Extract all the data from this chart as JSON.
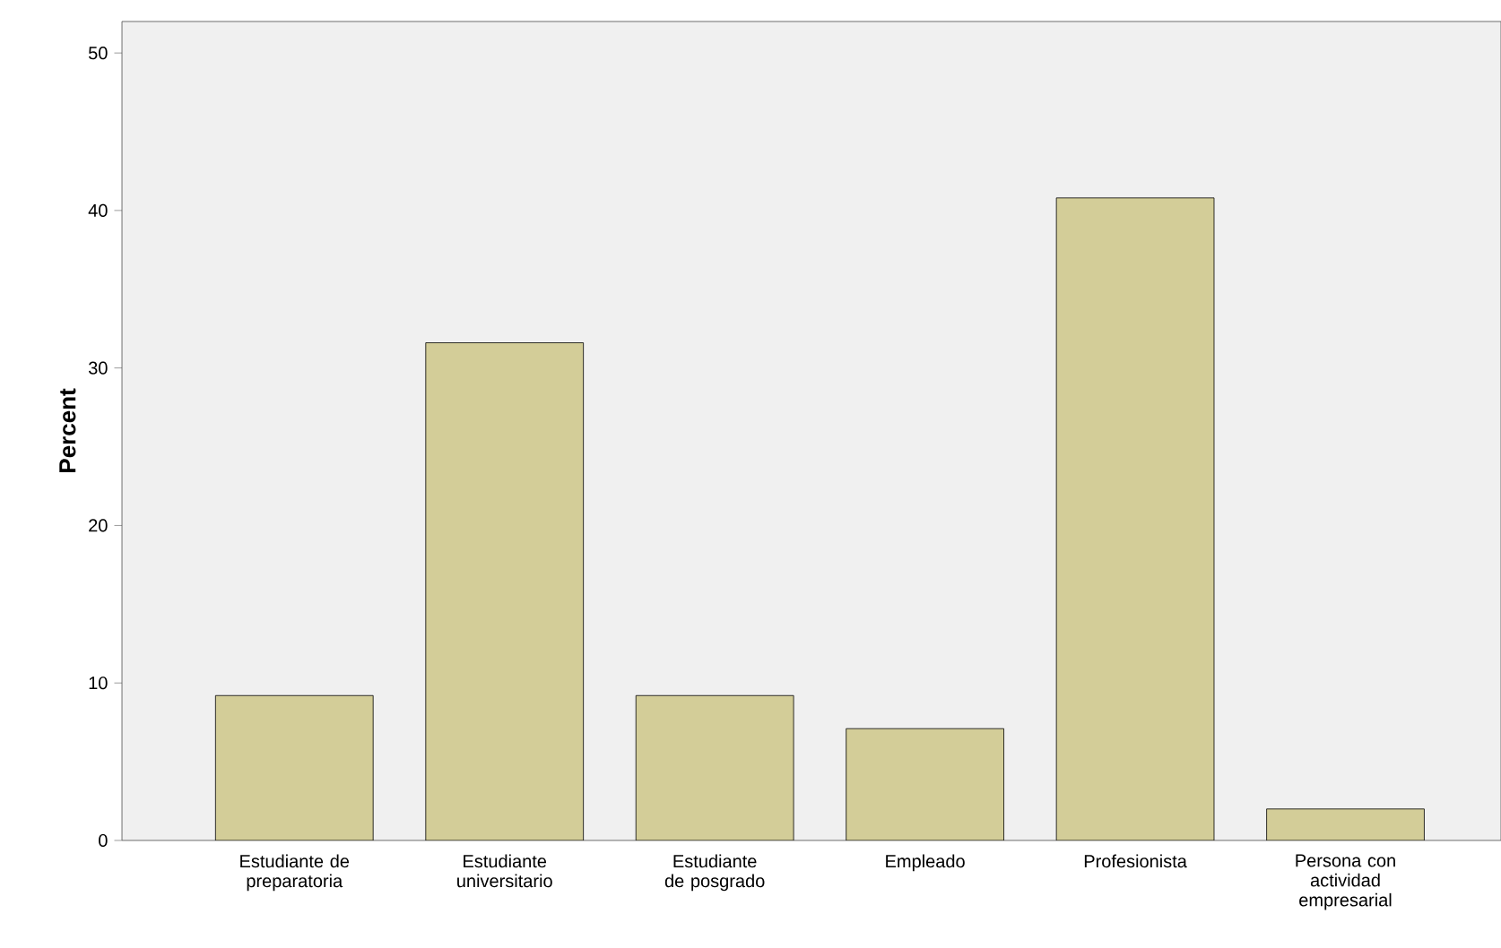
{
  "chart_data": {
    "type": "bar",
    "ylabel": "Percent",
    "categories": [
      "Estudiante de preparatoria",
      "Estudiante universitario",
      "Estudiante de posgrado",
      "Empleado",
      "Profesionista",
      "Persona con actividad empresarial"
    ],
    "values": [
      9.2,
      31.6,
      9.2,
      7.1,
      40.8,
      2.0
    ],
    "color": "#d3cd98",
    "ylim": [
      0,
      52
    ],
    "yticks": [
      0,
      10,
      20,
      30,
      40,
      50
    ]
  }
}
